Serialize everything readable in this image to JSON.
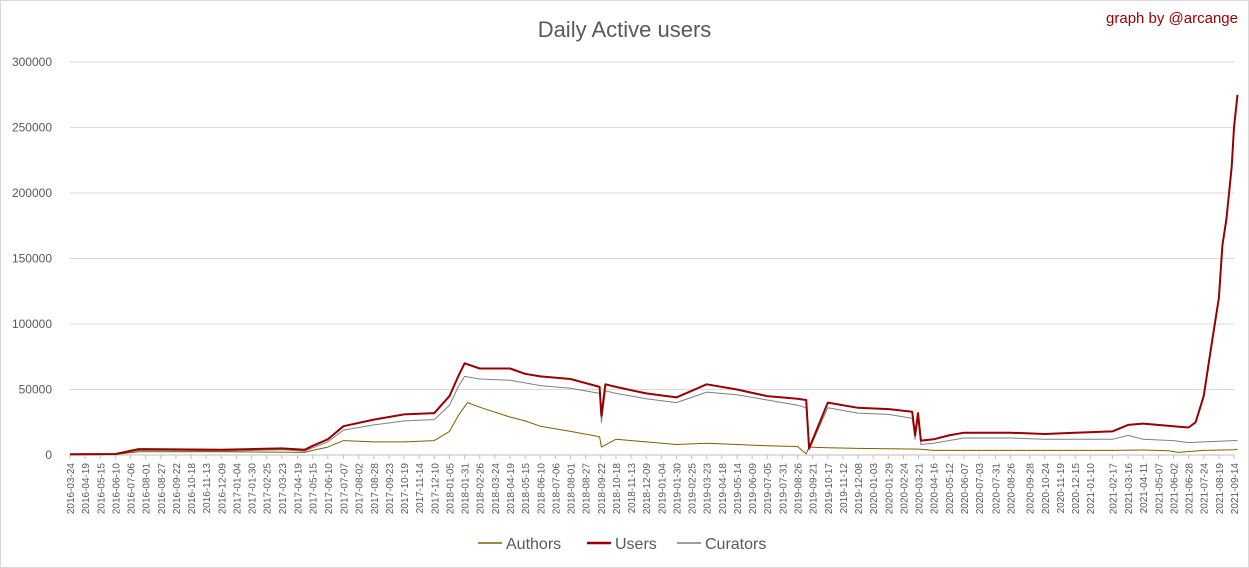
{
  "credit": "graph by @arcange",
  "chart_data": {
    "type": "line",
    "title": "Daily Active users",
    "xlabel": "",
    "ylabel": "",
    "ylim": [
      0,
      300000
    ],
    "yticks": [
      0,
      50000,
      100000,
      150000,
      200000,
      250000,
      300000
    ],
    "grid": "horizontal",
    "legend": "bottom",
    "x_tick_labels": [
      "2016-03-24",
      "2016-04-19",
      "2016-05-15",
      "2016-06-10",
      "2016-07-06",
      "2016-08-01",
      "2016-08-27",
      "2016-09-22",
      "2016-10-18",
      "2016-11-13",
      "2016-12-09",
      "2017-01-04",
      "2017-01-30",
      "2017-02-25",
      "2017-03-23",
      "2017-04-19",
      "2017-05-15",
      "2017-06-10",
      "2017-07-07",
      "2017-08-02",
      "2017-08-28",
      "2017-09-23",
      "2017-10-19",
      "2017-11-14",
      "2017-12-10",
      "2018-01-05",
      "2018-01-31",
      "2018-02-26",
      "2018-03-24",
      "2018-04-19",
      "2018-05-15",
      "2018-06-10",
      "2018-07-06",
      "2018-08-01",
      "2018-08-27",
      "2018-09-22",
      "2018-10-18",
      "2018-11-13",
      "2018-12-09",
      "2019-01-04",
      "2019-01-30",
      "2019-02-25",
      "2019-03-23",
      "2019-04-18",
      "2019-05-14",
      "2019-06-09",
      "2019-07-05",
      "2019-07-31",
      "2019-08-26",
      "2019-09-21",
      "2019-10-17",
      "2019-11-12",
      "2019-12-08",
      "2020-01-03",
      "2020-01-29",
      "2020-02-24",
      "2020-03-21",
      "2020-04-16",
      "2020-05-12",
      "2020-06-07",
      "2020-07-03",
      "2020-07-31",
      "2020-08-26",
      "2020-09-28",
      "2020-10-24",
      "2020-11-19",
      "2020-12-15",
      "2021-01-10",
      "2021-02-17",
      "2021-03-16",
      "2021-04-11",
      "2021-05-07",
      "2021-06-02",
      "2021-06-28",
      "2021-07-24",
      "2021-08-19",
      "2021-09-14"
    ],
    "series": [
      {
        "name": "Authors",
        "color": "#7f6000",
        "x": [
          "2016-03-24",
          "2016-06-10",
          "2016-07-20",
          "2016-12-09",
          "2017-05-01",
          "2017-05-15",
          "2017-06-10",
          "2017-07-07",
          "2017-08-28",
          "2017-10-19",
          "2017-12-10",
          "2018-01-05",
          "2018-01-20",
          "2018-02-05",
          "2018-03-01",
          "2018-04-19",
          "2018-05-15",
          "2018-06-10",
          "2018-08-01",
          "2018-09-20",
          "2018-09-23",
          "2018-10-18",
          "2018-12-09",
          "2019-01-30",
          "2019-03-23",
          "2019-05-14",
          "2019-07-05",
          "2019-08-26",
          "2019-09-10",
          "2019-09-15",
          "2019-10-17",
          "2019-12-08",
          "2020-01-29",
          "2020-03-21",
          "2020-04-16",
          "2020-06-07",
          "2020-08-26",
          "2020-10-24",
          "2020-12-15",
          "2021-02-17",
          "2021-04-11",
          "2021-05-25",
          "2021-06-10",
          "2021-07-24",
          "2021-09-14",
          "2021-09-20"
        ],
        "y": [
          200,
          400,
          2500,
          2500,
          2000,
          3500,
          6000,
          11000,
          10000,
          10000,
          11000,
          18000,
          30000,
          40000,
          36000,
          29000,
          26000,
          22000,
          18000,
          14000,
          6000,
          12000,
          10000,
          8000,
          9000,
          8000,
          7000,
          6500,
          1000,
          6000,
          5500,
          5000,
          4800,
          4500,
          3500,
          3500,
          3500,
          3500,
          3500,
          3500,
          3800,
          3200,
          2000,
          3500,
          4000,
          4500
        ]
      },
      {
        "name": "Users",
        "color": "#990000",
        "x": [
          "2016-03-24",
          "2016-06-10",
          "2016-07-20",
          "2016-08-01",
          "2016-12-09",
          "2017-03-23",
          "2017-05-01",
          "2017-05-15",
          "2017-06-10",
          "2017-07-07",
          "2017-08-28",
          "2017-10-19",
          "2017-12-10",
          "2018-01-05",
          "2018-01-20",
          "2018-01-31",
          "2018-02-26",
          "2018-04-19",
          "2018-05-15",
          "2018-06-10",
          "2018-08-01",
          "2018-09-20",
          "2018-09-23",
          "2018-09-30",
          "2018-10-18",
          "2018-12-09",
          "2019-01-30",
          "2019-03-23",
          "2019-05-14",
          "2019-07-05",
          "2019-08-26",
          "2019-09-10",
          "2019-09-15",
          "2019-10-17",
          "2019-12-08",
          "2020-01-29",
          "2020-03-10",
          "2020-03-15",
          "2020-03-20",
          "2020-03-25",
          "2020-04-16",
          "2020-05-12",
          "2020-06-07",
          "2020-08-26",
          "2020-10-24",
          "2020-12-15",
          "2021-02-17",
          "2021-03-16",
          "2021-04-11",
          "2021-06-02",
          "2021-06-28",
          "2021-07-10",
          "2021-07-24",
          "2021-08-05",
          "2021-08-19",
          "2021-08-25",
          "2021-09-01",
          "2021-09-10",
          "2021-09-14",
          "2021-09-20"
        ],
        "y": [
          500,
          800,
          4500,
          4500,
          4000,
          5000,
          4000,
          7000,
          12000,
          22000,
          27000,
          31000,
          32000,
          45000,
          60000,
          70000,
          66000,
          66000,
          62000,
          60000,
          58000,
          52000,
          30000,
          54000,
          52000,
          47000,
          44000,
          54000,
          50000,
          45000,
          43000,
          42000,
          5000,
          40000,
          36000,
          35000,
          33000,
          15000,
          32000,
          11000,
          12000,
          15000,
          17000,
          17000,
          16000,
          17000,
          18000,
          23000,
          24000,
          22000,
          21000,
          25000,
          45000,
          80000,
          120000,
          160000,
          180000,
          220000,
          250000,
          275000
        ]
      },
      {
        "name": "Curators",
        "color": "#7f7f7f",
        "x": [
          "2016-03-24",
          "2016-06-10",
          "2016-07-20",
          "2016-12-09",
          "2017-03-23",
          "2017-05-01",
          "2017-05-15",
          "2017-06-10",
          "2017-07-07",
          "2017-08-28",
          "2017-10-19",
          "2017-12-10",
          "2018-01-05",
          "2018-01-20",
          "2018-01-31",
          "2018-02-26",
          "2018-04-19",
          "2018-05-15",
          "2018-06-10",
          "2018-08-01",
          "2018-09-20",
          "2018-09-23",
          "2018-09-30",
          "2018-10-18",
          "2018-12-09",
          "2019-01-30",
          "2019-03-23",
          "2019-05-14",
          "2019-07-05",
          "2019-08-26",
          "2019-09-10",
          "2019-09-15",
          "2019-10-17",
          "2019-12-08",
          "2020-01-29",
          "2020-03-10",
          "2020-03-15",
          "2020-03-20",
          "2020-03-25",
          "2020-04-16",
          "2020-05-12",
          "2020-06-07",
          "2020-08-26",
          "2020-10-24",
          "2020-12-15",
          "2021-02-17",
          "2021-03-16",
          "2021-04-11",
          "2021-06-02",
          "2021-06-28",
          "2021-07-24",
          "2021-08-19",
          "2021-09-14",
          "2021-09-20"
        ],
        "y": [
          300,
          600,
          3500,
          3000,
          4000,
          3000,
          5500,
          10000,
          19000,
          23000,
          26000,
          27000,
          38000,
          52000,
          60000,
          58000,
          57000,
          55000,
          53000,
          51000,
          47000,
          25000,
          49000,
          47000,
          43000,
          40000,
          48000,
          46000,
          42000,
          38000,
          36000,
          4000,
          36000,
          32000,
          31000,
          28000,
          12000,
          28000,
          8000,
          9000,
          11000,
          13000,
          13000,
          12000,
          12000,
          12000,
          15000,
          12000,
          11000,
          9500,
          10000,
          10500,
          11000,
          11000
        ]
      }
    ]
  }
}
